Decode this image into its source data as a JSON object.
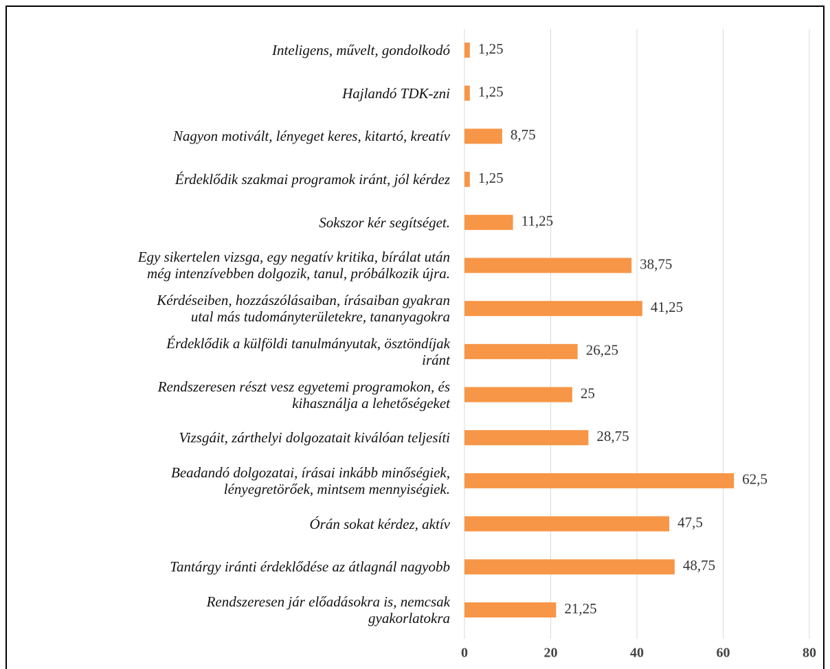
{
  "chart_data": {
    "type": "barh",
    "categories": [
      "Inteligens, művelt, gondolkodó",
      "Hajlandó TDK-zni",
      "Nagyon motivált, lényeget keres,  kitartó, kreatív",
      "Érdeklődik szakmai programok iránt, jól kérdez",
      "Sokszor kér segítséget.",
      "Egy sikertelen vizsga, egy negatív kritika, bírálat után\nmég intenzívebben dolgozik, tanul, próbálkozik újra.",
      "Kérdéseiben, hozzászólásaiban, írásaiban gyakran\nutal más tudományterületekre, tananyagokra",
      "Érdeklődik a külföldi tanulmányutak, ösztöndíjak\niránt",
      "Rendszeresen részt vesz egyetemi programokon, és\nkihasználja a lehetőségeket",
      "Vizsgáit, zárthelyi dolgozatait kiválóan teljesíti",
      "Beadandó dolgozatai, írásai inkább minőségiek,\nlényegretörőek, mintsem mennyiségiek.",
      "Órán sokat kérdez, aktív",
      "Tantárgy iránti érdeklődése az átlagnál nagyobb",
      "Rendszeresen jár előadásokra is, nemcsak\ngyakorlatokra"
    ],
    "values": [
      1.25,
      1.25,
      8.75,
      1.25,
      11.25,
      38.75,
      41.25,
      26.25,
      25,
      28.75,
      62.5,
      47.5,
      48.75,
      21.25
    ],
    "value_labels": [
      "1,25",
      "1,25",
      "8,75",
      "1,25",
      "11,25",
      "38,75",
      "41,25",
      "26,25",
      "25",
      "28,75",
      "62,5",
      "47,5",
      "48,75",
      "21,25"
    ],
    "color": "#f79646",
    "xlim": [
      0,
      80
    ],
    "xticks": [
      0,
      20,
      40,
      60,
      80
    ],
    "grid": true
  }
}
